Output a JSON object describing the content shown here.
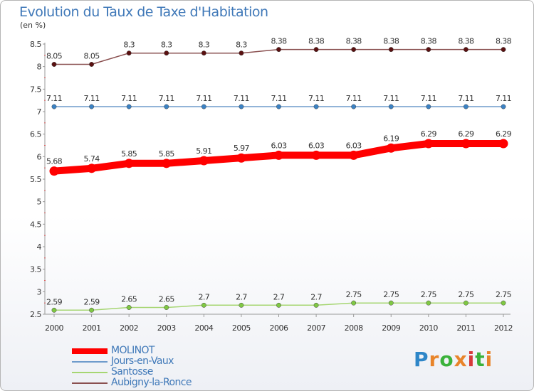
{
  "title": "Evolution du Taux de Taxe d'Habitation",
  "unit_label": "(en %)",
  "chart_data": {
    "type": "line",
    "title": "Evolution du Taux de Taxe d'Habitation",
    "ylabel": "(en %)",
    "xlabel": "",
    "x": [
      2000,
      2001,
      2002,
      2003,
      2004,
      2005,
      2006,
      2007,
      2008,
      2009,
      2010,
      2011,
      2012
    ],
    "ylim": [
      2.5,
      8.5
    ],
    "yticks": [
      2.5,
      3,
      3.5,
      4,
      4.5,
      5,
      5.5,
      6,
      6.5,
      7,
      7.5,
      8,
      8.5
    ],
    "series": [
      {
        "name": "MOLINOT",
        "color": "#ff0000",
        "marker_color": "#ff0000",
        "emphasis": true,
        "values": [
          5.68,
          5.74,
          5.85,
          5.85,
          5.91,
          5.97,
          6.03,
          6.03,
          6.03,
          6.19,
          6.29,
          6.29,
          6.29
        ]
      },
      {
        "name": "Jours-en-Vaux",
        "color": "#6f9ccc",
        "marker_color": "#3b82c4",
        "emphasis": false,
        "values": [
          7.11,
          7.11,
          7.11,
          7.11,
          7.11,
          7.11,
          7.11,
          7.11,
          7.11,
          7.11,
          7.11,
          7.11,
          7.11
        ]
      },
      {
        "name": "Santosse",
        "color": "#a6d672",
        "marker_color": "#7fc843",
        "emphasis": false,
        "values": [
          2.59,
          2.59,
          2.65,
          2.65,
          2.7,
          2.7,
          2.7,
          2.7,
          2.75,
          2.75,
          2.75,
          2.75,
          2.75
        ]
      },
      {
        "name": "Aubigny-la-Ronce",
        "color": "#8a5050",
        "marker_color": "#5a1010",
        "emphasis": false,
        "values": [
          8.05,
          8.05,
          8.3,
          8.3,
          8.3,
          8.3,
          8.38,
          8.38,
          8.38,
          8.38,
          8.38,
          8.38,
          8.38
        ]
      }
    ],
    "legend_position": "bottom-left"
  },
  "logo": {
    "text": "Proxiti",
    "letters": [
      "P",
      "r",
      "o",
      "x",
      "i",
      "t",
      "i"
    ],
    "colors": [
      "#2e86c8",
      "#e8842a",
      "#3bb23b",
      "#e8842a",
      "#d63a3a",
      "#3bb23b",
      "#e8842a"
    ]
  }
}
